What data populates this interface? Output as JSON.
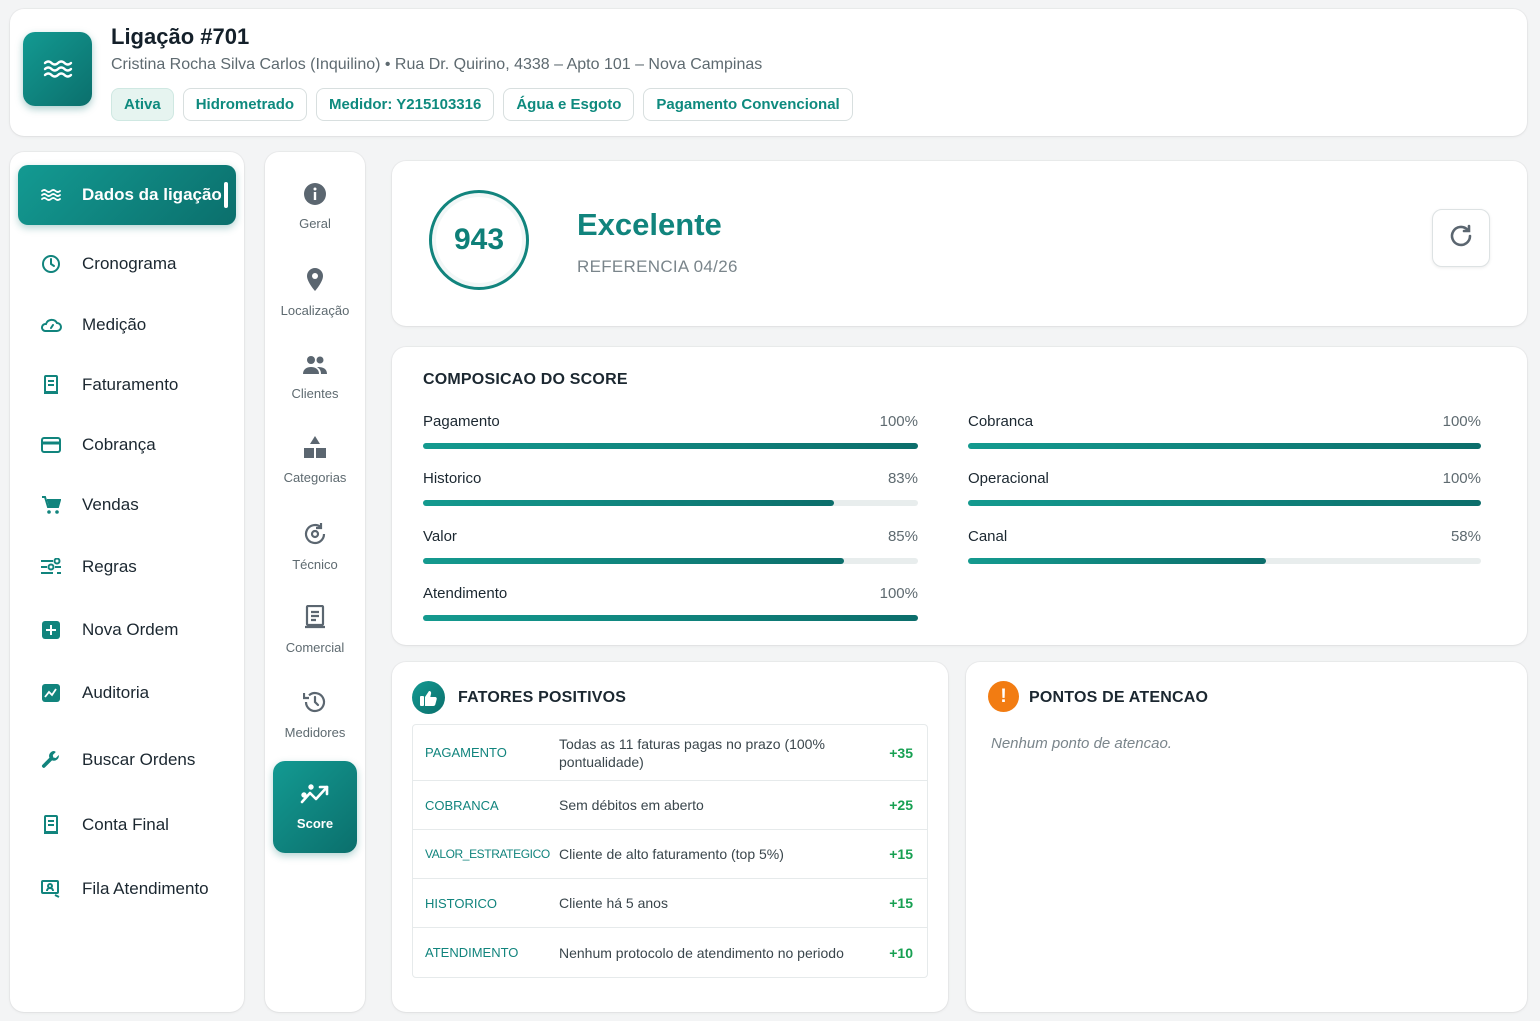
{
  "header": {
    "title": "Ligação #701",
    "subtitle": "Cristina Rocha Silva Carlos (Inquilino) • Rua Dr. Quirino, 4338 – Apto 101 – Nova Campinas",
    "tags": [
      "Ativa",
      "Hidrometrado",
      "Medidor: Y215103316",
      "Água e Esgoto",
      "Pagamento Convencional"
    ],
    "icon": "water-waves-icon"
  },
  "sidebar": {
    "items": [
      {
        "label": "Dados da ligação",
        "icon": "water-waves-icon",
        "active": true
      },
      {
        "label": "Cronograma",
        "icon": "clock-icon"
      },
      {
        "label": "Medição",
        "icon": "gauge-cloud-icon"
      },
      {
        "label": "Faturamento",
        "icon": "receipt-icon"
      },
      {
        "label": "Cobrança",
        "icon": "credit-card-icon"
      },
      {
        "label": "Vendas",
        "icon": "cart-icon"
      },
      {
        "label": "Regras",
        "icon": "sliders-icon"
      },
      {
        "label": "Nova Ordem",
        "icon": "plus-box-icon"
      },
      {
        "label": "Auditoria",
        "icon": "chart-box-icon"
      },
      {
        "label": "Buscar Ordens",
        "icon": "wrench-icon"
      },
      {
        "label": "Conta Final",
        "icon": "receipt-icon"
      },
      {
        "label": "Fila Atendimento",
        "icon": "monitor-user-icon"
      }
    ]
  },
  "subnav": {
    "items": [
      {
        "label": "Geral",
        "icon": "info-icon"
      },
      {
        "label": "Localização",
        "icon": "map-pin-icon"
      },
      {
        "label": "Clientes",
        "icon": "people-icon"
      },
      {
        "label": "Categorias",
        "icon": "shapes-icon"
      },
      {
        "label": "Técnico",
        "icon": "gear-refresh-icon"
      },
      {
        "label": "Comercial",
        "icon": "document-icon"
      },
      {
        "label": "Medidores",
        "icon": "history-icon"
      },
      {
        "label": "Score",
        "icon": "trend-up-icon",
        "active": true
      }
    ]
  },
  "score": {
    "value": "943",
    "label": "Excelente",
    "reference": "REFERENCIA 04/26",
    "accent": "#11847d"
  },
  "composition": {
    "title": "COMPOSICAO DO SCORE",
    "left": [
      {
        "name": "Pagamento",
        "value": "100%",
        "pct": 100
      },
      {
        "name": "Historico",
        "value": "83%",
        "pct": 83
      },
      {
        "name": "Valor",
        "value": "85%",
        "pct": 85
      },
      {
        "name": "Atendimento",
        "value": "100%",
        "pct": 100
      }
    ],
    "right": [
      {
        "name": "Cobranca",
        "value": "100%",
        "pct": 100
      },
      {
        "name": "Operacional",
        "value": "100%",
        "pct": 100
      },
      {
        "name": "Canal",
        "value": "58%",
        "pct": 58
      }
    ]
  },
  "positive": {
    "title": "FATORES POSITIVOS",
    "rows": [
      {
        "category": "PAGAMENTO",
        "description": "Todas as 11 faturas pagas no prazo (100% pontualidade)",
        "points": "+35"
      },
      {
        "category": "COBRANCA",
        "description": "Sem débitos em aberto",
        "points": "+25"
      },
      {
        "category": "VALOR_ESTRATEGICO",
        "description": "Cliente de alto faturamento (top 5%)",
        "points": "+15"
      },
      {
        "category": "HISTORICO",
        "description": "Cliente há 5 anos",
        "points": "+15"
      },
      {
        "category": "ATENDIMENTO",
        "description": "Nenhum protocolo de atendimento no periodo",
        "points": "+10"
      }
    ],
    "positive_color": "#17a052"
  },
  "attention": {
    "title": "PONTOS DE ATENCAO",
    "empty": "Nenhum ponto de atencao.",
    "badge": "!",
    "warn_color": "#f27c12"
  }
}
